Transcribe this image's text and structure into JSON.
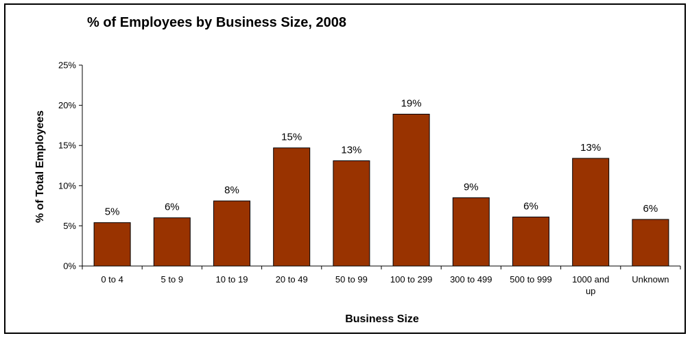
{
  "chart_data": {
    "type": "bar",
    "title": "% of Employees by Business Size, 2008",
    "xlabel": "Business Size",
    "ylabel": "% of Total Employees",
    "categories": [
      "0 to 4",
      "5 to 9",
      "10 to 19",
      "20 to 49",
      "50 to 99",
      "100 to 299",
      "300 to 499",
      "500 to 999",
      "1000 and up",
      "Unknown"
    ],
    "values": [
      5.4,
      6.0,
      8.1,
      14.7,
      13.1,
      18.9,
      8.5,
      6.1,
      13.4,
      5.8
    ],
    "data_labels": [
      "5%",
      "6%",
      "8%",
      "15%",
      "13%",
      "19%",
      "9%",
      "6%",
      "13%",
      "6%"
    ],
    "yticks": [
      0,
      5,
      10,
      15,
      20,
      25
    ],
    "ytick_labels": [
      "0%",
      "5%",
      "10%",
      "15%",
      "20%",
      "25%"
    ],
    "ylim": [
      0,
      25
    ],
    "bar_color": "#993300",
    "grid": false,
    "legend": "none"
  }
}
